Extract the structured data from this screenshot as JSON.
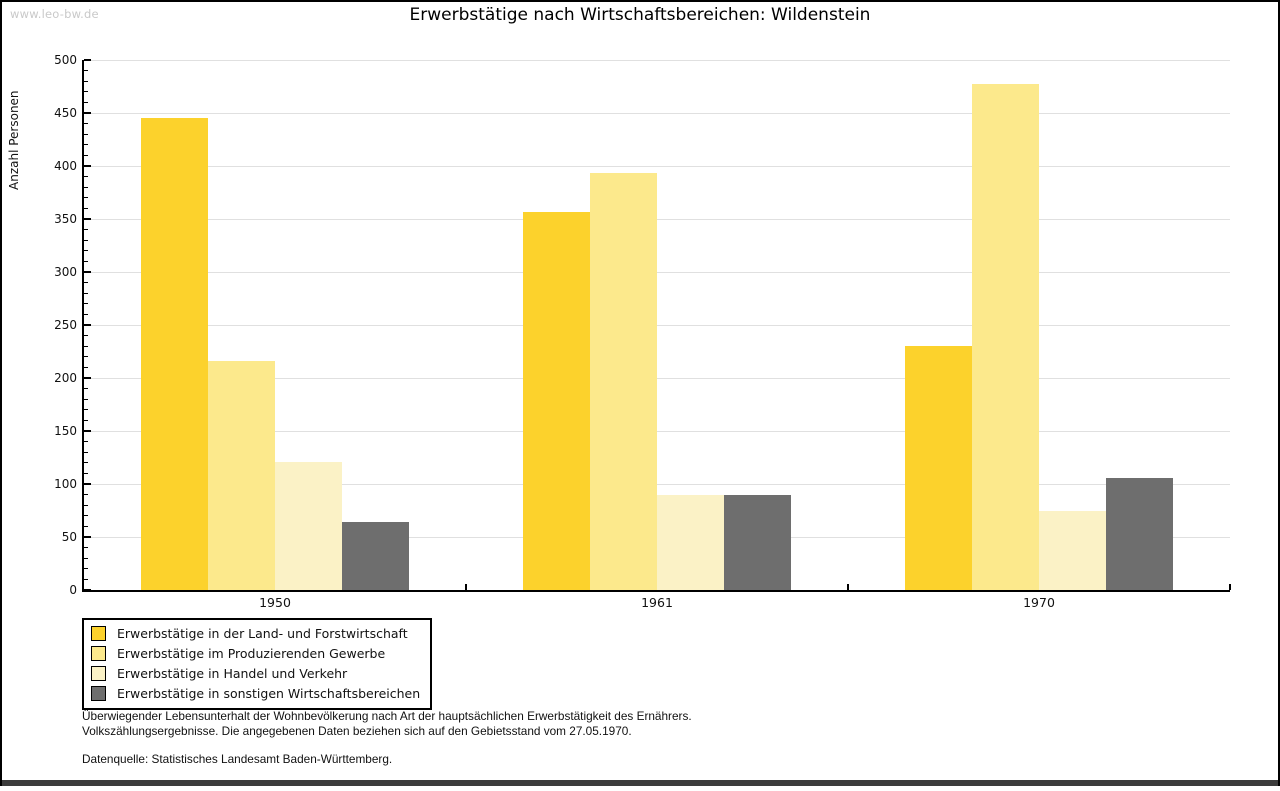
{
  "watermark": "www.leo-bw.de",
  "title": "Erwerbstätige nach Wirtschaftsbereichen: Wildenstein",
  "chart_data": {
    "type": "bar",
    "title": "Erwerbstätige nach Wirtschaftsbereichen: Wildenstein",
    "xlabel": "",
    "ylabel": "Anzahl Personen",
    "ylim": [
      0,
      500
    ],
    "ytick_step": 50,
    "y_minor_step": 10,
    "grid": true,
    "legend_position": "bottom-left",
    "categories": [
      "1950",
      "1961",
      "1970"
    ],
    "series": [
      {
        "name": "Erwerbstätige in der Land- und Forstwirtschaft",
        "color": "#FCD22C",
        "values": [
          445,
          357,
          230
        ]
      },
      {
        "name": "Erwerbstätige im Produzierenden Gewerbe",
        "color": "#FCE98C",
        "values": [
          216,
          393,
          477
        ]
      },
      {
        "name": "Erwerbstätige in Handel und Verkehr",
        "color": "#FBF2C6",
        "values": [
          121,
          90,
          75
        ]
      },
      {
        "name": "Erwerbstätige in sonstigen Wirtschaftsbereichen",
        "color": "#6E6E6E",
        "values": [
          64,
          90,
          106
        ]
      }
    ]
  },
  "footnotes": [
    "Überwiegender Lebensunterhalt der Wohnbevölkerung nach Art der hauptsächlichen Erwerbstätigkeit des Ernährers.",
    "Volkszählungsergebnisse. Die angegebenen Daten beziehen sich auf den Gebietsstand vom 27.05.1970."
  ],
  "source": "Datenquelle: Statistisches Landesamt Baden-Württemberg.",
  "colors": {
    "grid": "#E0E0E0",
    "axis": "#000000",
    "watermark": "#C9C9C9"
  }
}
